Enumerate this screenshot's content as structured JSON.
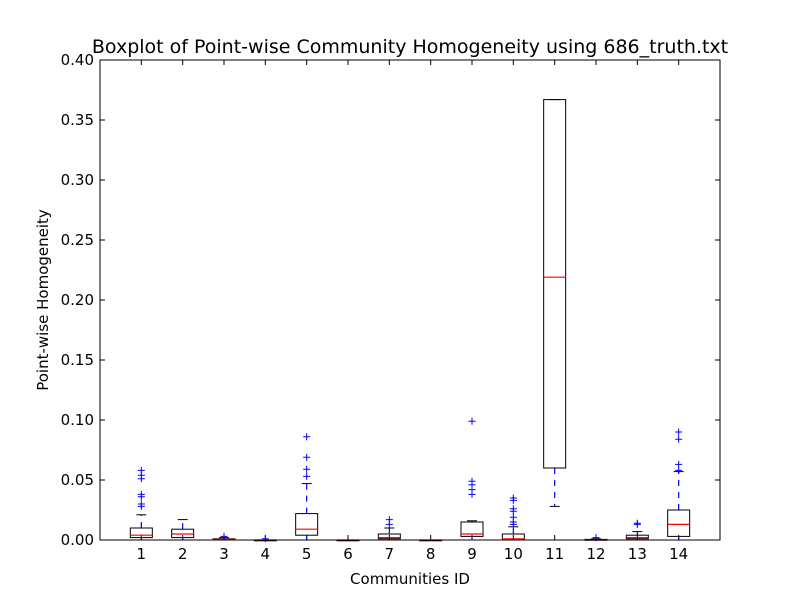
{
  "chart_data": {
    "type": "boxplot",
    "title": "Boxplot of Point-wise Community Homogeneity using 686_truth.txt",
    "xlabel": "Communities ID",
    "ylabel": "Point-wise Homogeneity",
    "ylim": [
      0.0,
      0.4
    ],
    "y_ticks": [
      "0.00",
      "0.05",
      "0.10",
      "0.15",
      "0.20",
      "0.25",
      "0.30",
      "0.35",
      "0.40"
    ],
    "y_tick_values": [
      0.0,
      0.05,
      0.1,
      0.15,
      0.2,
      0.25,
      0.3,
      0.35,
      0.4
    ],
    "categories": [
      "1",
      "2",
      "3",
      "4",
      "5",
      "6",
      "7",
      "8",
      "9",
      "10",
      "11",
      "12",
      "13",
      "14"
    ],
    "grid": false,
    "colors": {
      "box": "#000000",
      "median": "#ff0000",
      "whisker": "#0000ff",
      "flier": "#0000ff",
      "cap": "#000000"
    },
    "boxes": [
      {
        "id": "1",
        "q1": 0.002,
        "median": 0.004,
        "q3": 0.01,
        "whisker_low": 0.0,
        "whisker_high": 0.021,
        "fliers": [
          0.028,
          0.03,
          0.036,
          0.038,
          0.051,
          0.054,
          0.058
        ]
      },
      {
        "id": "2",
        "q1": 0.002,
        "median": 0.005,
        "q3": 0.009,
        "whisker_low": 0.0,
        "whisker_high": 0.017,
        "fliers": []
      },
      {
        "id": "3",
        "q1": 0.0,
        "median": 0.0005,
        "q3": 0.001,
        "whisker_low": 0.0,
        "whisker_high": 0.002,
        "fliers": [
          0.003
        ]
      },
      {
        "id": "4",
        "q1": 0.0,
        "median": 0.0,
        "q3": 0.0,
        "whisker_low": 0.0,
        "whisker_high": 0.0,
        "fliers": [
          0.001
        ]
      },
      {
        "id": "5",
        "q1": 0.004,
        "median": 0.009,
        "q3": 0.022,
        "whisker_low": 0.0,
        "whisker_high": 0.047,
        "fliers": [
          0.053,
          0.059,
          0.069,
          0.086
        ]
      },
      {
        "id": "6",
        "q1": 0.0,
        "median": 0.0,
        "q3": 0.0,
        "whisker_low": 0.0,
        "whisker_high": 0.0,
        "fliers": []
      },
      {
        "id": "7",
        "q1": 0.001,
        "median": 0.002,
        "q3": 0.005,
        "whisker_low": 0.0,
        "whisker_high": 0.01,
        "fliers": [
          0.013,
          0.017
        ]
      },
      {
        "id": "8",
        "q1": 0.0,
        "median": 0.0,
        "q3": 0.0,
        "whisker_low": 0.0,
        "whisker_high": 0.0,
        "fliers": []
      },
      {
        "id": "9",
        "q1": 0.003,
        "median": 0.005,
        "q3": 0.015,
        "whisker_low": 0.0,
        "whisker_high": 0.016,
        "fliers": [
          0.038,
          0.042,
          0.046,
          0.049,
          0.099
        ]
      },
      {
        "id": "10",
        "q1": 0.0,
        "median": 0.001,
        "q3": 0.005,
        "whisker_low": 0.0,
        "whisker_high": 0.011,
        "fliers": [
          0.013,
          0.015,
          0.019,
          0.024,
          0.026,
          0.033,
          0.035
        ]
      },
      {
        "id": "11",
        "q1": 0.06,
        "median": 0.219,
        "q3": 0.367,
        "whisker_low": 0.028,
        "whisker_high": 0.367,
        "fliers": []
      },
      {
        "id": "12",
        "q1": 0.0,
        "median": 0.0,
        "q3": 0.0005,
        "whisker_low": 0.0,
        "whisker_high": 0.001,
        "fliers": [
          0.002
        ]
      },
      {
        "id": "13",
        "q1": 0.001,
        "median": 0.002,
        "q3": 0.004,
        "whisker_low": 0.0,
        "whisker_high": 0.007,
        "fliers": [
          0.013,
          0.014
        ]
      },
      {
        "id": "14",
        "q1": 0.003,
        "median": 0.013,
        "q3": 0.025,
        "whisker_low": 0.0,
        "whisker_high": 0.057,
        "fliers": [
          0.058,
          0.063,
          0.084,
          0.09
        ]
      }
    ]
  }
}
